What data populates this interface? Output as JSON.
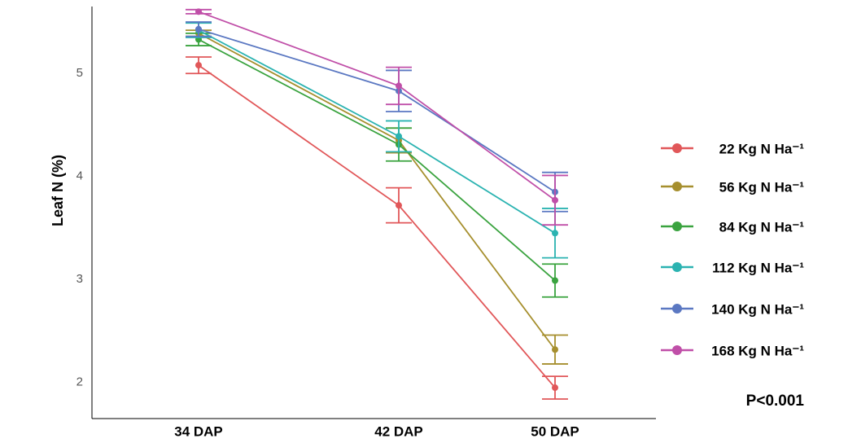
{
  "chart_data": {
    "type": "line",
    "y_label": "Leaf N (%)",
    "categories": [
      "34 DAP",
      "42 DAP",
      "50 DAP"
    ],
    "ylim": [
      1.65,
      5.65
    ],
    "yticks": [
      2,
      3,
      4,
      5
    ],
    "grid": false,
    "legend": "right",
    "annotation": "P<0.001",
    "series": [
      {
        "name": "22 Kg N Ha⁻¹",
        "color": "#e15759",
        "values": [
          5.08,
          3.72,
          1.95
        ],
        "errors": [
          0.08,
          0.17,
          0.11
        ]
      },
      {
        "name": "56 Kg N Ha⁻¹",
        "color": "#a68f2e",
        "values": [
          5.39,
          4.35,
          2.32
        ],
        "errors": [
          0.03,
          0.12,
          0.14
        ]
      },
      {
        "name": "84 Kg N Ha⁻¹",
        "color": "#3aa33f",
        "values": [
          5.33,
          4.31,
          2.99
        ],
        "errors": [
          0.06,
          0.16,
          0.16
        ]
      },
      {
        "name": "112 Kg N Ha⁻¹",
        "color": "#2bb3b1",
        "values": [
          5.42,
          4.39,
          3.45
        ],
        "errors": [
          0.07,
          0.15,
          0.24
        ]
      },
      {
        "name": "140 Kg N Ha⁻¹",
        "color": "#5b78c2",
        "values": [
          5.43,
          4.83,
          3.85
        ],
        "errors": [
          0.07,
          0.2,
          0.19
        ]
      },
      {
        "name": "168 Kg N Ha⁻¹",
        "color": "#c04fa8",
        "values": [
          5.6,
          4.88,
          3.77
        ],
        "errors": [
          0.02,
          0.18,
          0.24
        ]
      }
    ]
  }
}
